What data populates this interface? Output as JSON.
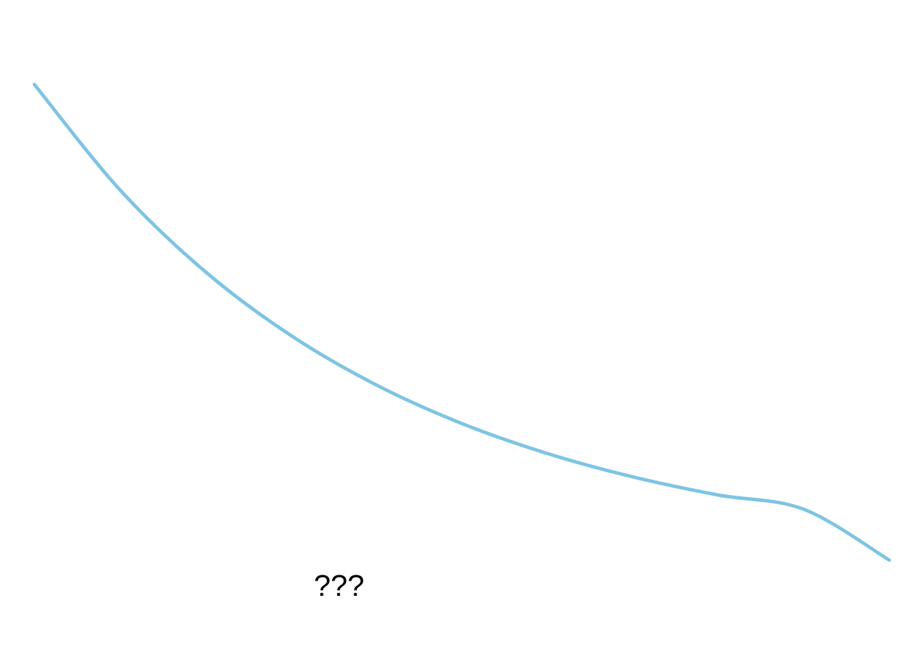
{
  "chart_data": {
    "type": "line",
    "title": "",
    "xlabel": "",
    "ylabel": "",
    "annotation": "???",
    "grid": false,
    "legend": "none",
    "series_color": "#7ec4e4",
    "series": [
      {
        "x": [
          0,
          0.1,
          0.2,
          0.3,
          0.4,
          0.5,
          0.6,
          0.7,
          0.8,
          0.9,
          1.0
        ],
        "values": [
          1.0,
          0.7786,
          0.6063,
          0.4724,
          0.3682,
          0.2872,
          0.2242,
          0.175,
          0.1369,
          0.1069,
          0.0
        ]
      }
    ],
    "xlim": [
      0,
      1
    ],
    "ylim": [
      0,
      1
    ]
  }
}
